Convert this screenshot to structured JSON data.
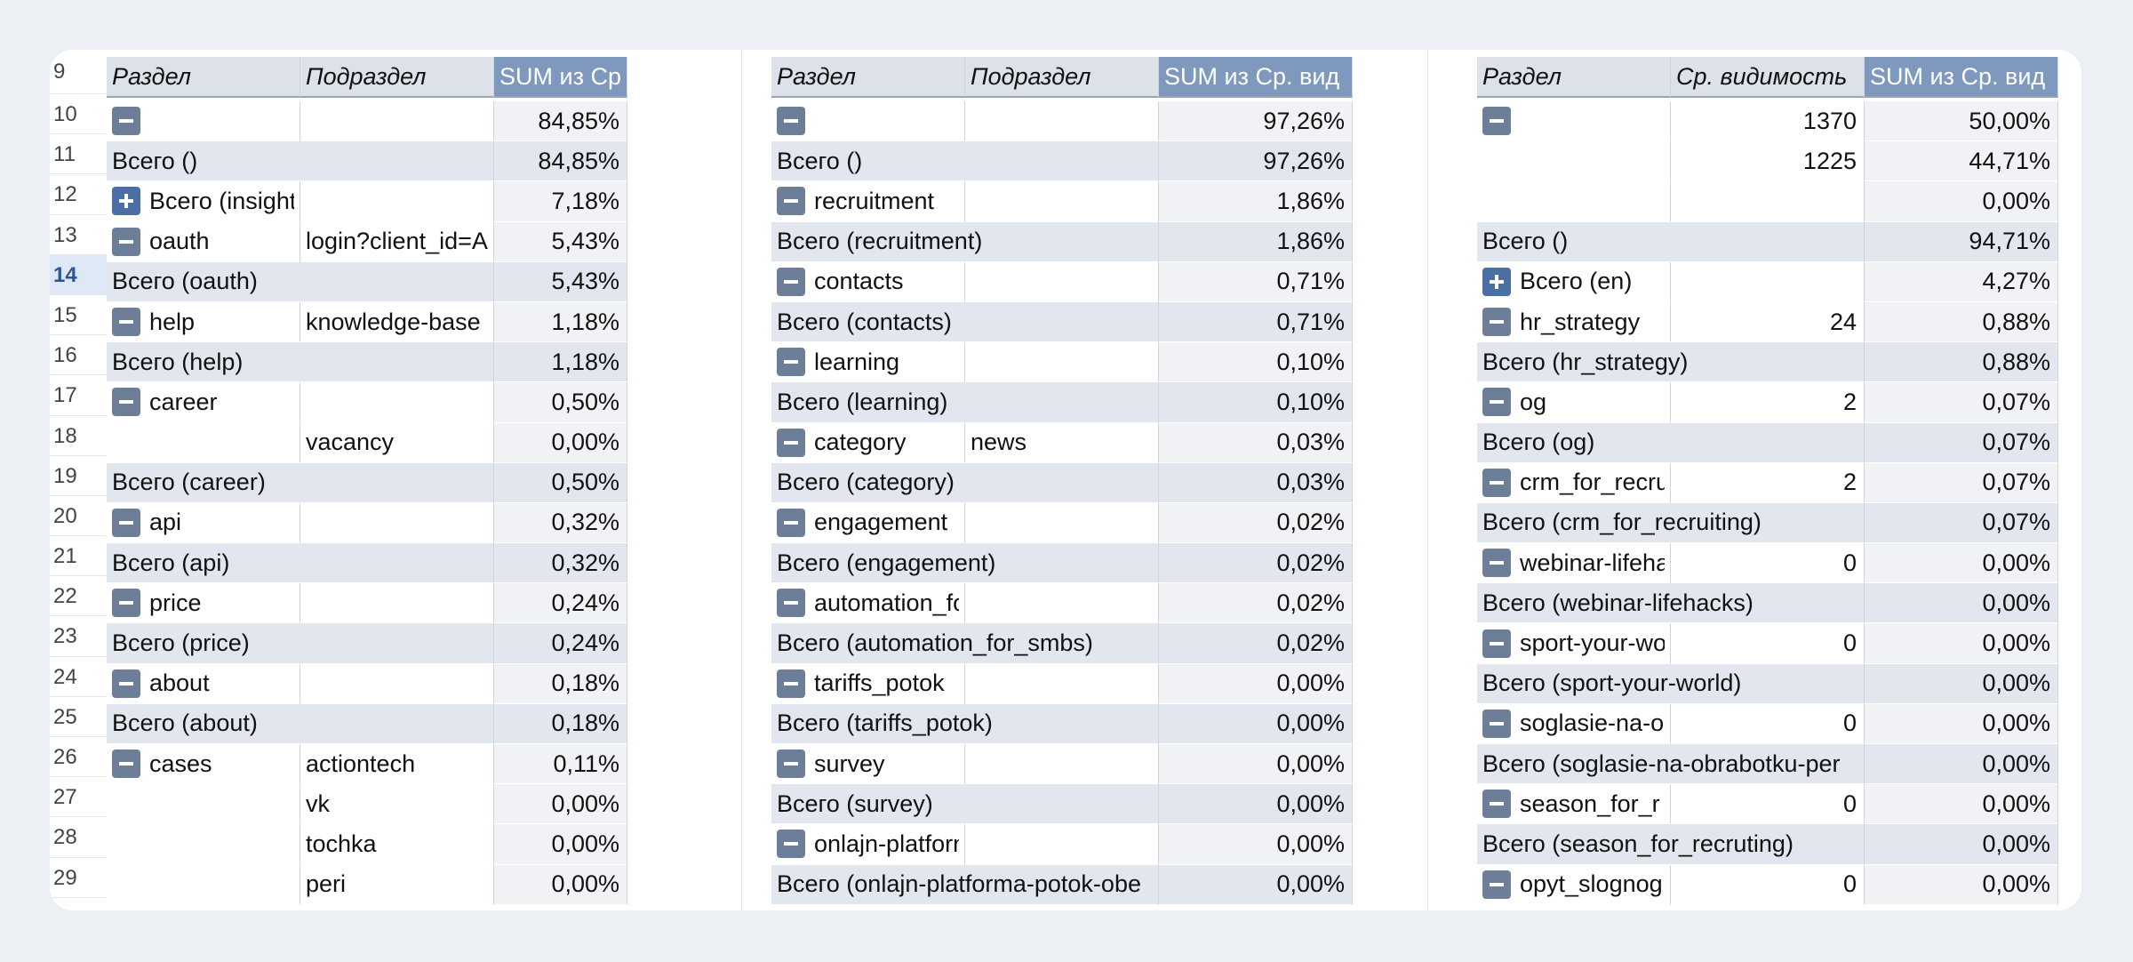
{
  "row_numbers": [
    "9",
    "10",
    "11",
    "12",
    "13",
    "14",
    "15",
    "16",
    "17",
    "18",
    "19",
    "20",
    "21",
    "22",
    "23",
    "24",
    "25",
    "26",
    "27",
    "28",
    "29"
  ],
  "selected_row": "14",
  "pivot1": {
    "headers": [
      "Раздел",
      "Подраздел",
      "SUM из Ср"
    ],
    "rows": [
      {
        "type": "toggle-minus",
        "a": "",
        "b": "",
        "v": "84,85%"
      },
      {
        "type": "total",
        "a": "Всего ()",
        "b": "",
        "v": "84,85%"
      },
      {
        "type": "toggle-plus",
        "a": "Всего (insight)",
        "b": "",
        "v": "7,18%"
      },
      {
        "type": "toggle-minus",
        "a": "oauth",
        "b": "login?client_id=A",
        "v": "5,43%"
      },
      {
        "type": "total",
        "a": "Всего (oauth)",
        "b": "",
        "v": "5,43%"
      },
      {
        "type": "toggle-minus",
        "a": "help",
        "b": "knowledge-base",
        "v": "1,18%"
      },
      {
        "type": "total",
        "a": "Всего (help)",
        "b": "",
        "v": "1,18%"
      },
      {
        "type": "toggle-minus",
        "a": "career",
        "b": "",
        "v": "0,50%"
      },
      {
        "type": "plain",
        "a": "",
        "b": "vacancy",
        "v": "0,00%"
      },
      {
        "type": "total",
        "a": "Всего (career)",
        "b": "",
        "v": "0,50%"
      },
      {
        "type": "toggle-minus",
        "a": "api",
        "b": "",
        "v": "0,32%"
      },
      {
        "type": "total",
        "a": "Всего (api)",
        "b": "",
        "v": "0,32%"
      },
      {
        "type": "toggle-minus",
        "a": "price",
        "b": "",
        "v": "0,24%"
      },
      {
        "type": "total",
        "a": "Всего (price)",
        "b": "",
        "v": "0,24%"
      },
      {
        "type": "toggle-minus",
        "a": "about",
        "b": "",
        "v": "0,18%"
      },
      {
        "type": "total",
        "a": "Всего (about)",
        "b": "",
        "v": "0,18%"
      },
      {
        "type": "toggle-minus",
        "a": "cases",
        "b": "actiontech",
        "v": "0,11%"
      },
      {
        "type": "plain",
        "a": "",
        "b": "vk",
        "v": "0,00%"
      },
      {
        "type": "plain",
        "a": "",
        "b": "tochka",
        "v": "0,00%"
      },
      {
        "type": "plain",
        "a": "",
        "b": "peri",
        "v": "0,00%"
      }
    ]
  },
  "pivot2": {
    "headers": [
      "Раздел",
      "Подраздел",
      "SUM из Ср. вид"
    ],
    "rows": [
      {
        "type": "toggle-minus",
        "a": "",
        "b": "",
        "v": "97,26%"
      },
      {
        "type": "total",
        "a": "Всего ()",
        "b": "",
        "v": "97,26%"
      },
      {
        "type": "toggle-minus",
        "a": "recruitment",
        "b": "",
        "v": "1,86%"
      },
      {
        "type": "total",
        "a": "Всего (recruitment)",
        "b": "",
        "v": "1,86%"
      },
      {
        "type": "toggle-minus",
        "a": "contacts",
        "b": "",
        "v": "0,71%"
      },
      {
        "type": "total",
        "a": "Всего (contacts)",
        "b": "",
        "v": "0,71%"
      },
      {
        "type": "toggle-minus",
        "a": "learning",
        "b": "",
        "v": "0,10%"
      },
      {
        "type": "total",
        "a": "Всего (learning)",
        "b": "",
        "v": "0,10%"
      },
      {
        "type": "toggle-minus",
        "a": "category",
        "b": "news",
        "v": "0,03%"
      },
      {
        "type": "total",
        "a": "Всего (category)",
        "b": "",
        "v": "0,03%"
      },
      {
        "type": "toggle-minus",
        "a": "engagement",
        "b": "",
        "v": "0,02%"
      },
      {
        "type": "total",
        "a": "Всего (engagement)",
        "b": "",
        "v": "0,02%"
      },
      {
        "type": "toggle-minus",
        "a": "automation_for_smbs",
        "b": "",
        "v": "0,02%"
      },
      {
        "type": "total",
        "a": "Всего (automation_for_smbs)",
        "b": "",
        "v": "0,02%"
      },
      {
        "type": "toggle-minus",
        "a": "tariffs_potok",
        "b": "",
        "v": "0,00%"
      },
      {
        "type": "total",
        "a": "Всего (tariffs_potok)",
        "b": "",
        "v": "0,00%"
      },
      {
        "type": "toggle-minus",
        "a": "survey",
        "b": "",
        "v": "0,00%"
      },
      {
        "type": "total",
        "a": "Всего (survey)",
        "b": "",
        "v": "0,00%"
      },
      {
        "type": "toggle-minus",
        "a": "onlajn-platforma-potok-obespe",
        "b": "",
        "v": "0,00%"
      },
      {
        "type": "total",
        "a": "Всего (onlajn-platforma-potok-obe",
        "b": "",
        "v": "0,00%"
      }
    ]
  },
  "pivot3": {
    "headers": [
      "Раздел",
      "Ср. видимость",
      "SUM из Ср. вид"
    ],
    "rows": [
      {
        "type": "toggle-minus",
        "a": "",
        "b": "1370",
        "v": "50,00%"
      },
      {
        "type": "plain",
        "a": "",
        "b": "1225",
        "v": "44,71%"
      },
      {
        "type": "plain",
        "a": "",
        "b": "",
        "v": "0,00%"
      },
      {
        "type": "total",
        "a": "Всего ()",
        "b": "",
        "v": "94,71%"
      },
      {
        "type": "toggle-plus",
        "a": "Всего (en)",
        "b": "",
        "v": "4,27%"
      },
      {
        "type": "toggle-minus",
        "a": "hr_strategy",
        "b": "24",
        "v": "0,88%"
      },
      {
        "type": "total",
        "a": "Всего (hr_strategy)",
        "b": "",
        "v": "0,88%"
      },
      {
        "type": "toggle-minus",
        "a": "og",
        "b": "2",
        "v": "0,07%"
      },
      {
        "type": "total",
        "a": "Всего (og)",
        "b": "",
        "v": "0,07%"
      },
      {
        "type": "toggle-minus",
        "a": "crm_for_recru",
        "b": "2",
        "v": "0,07%"
      },
      {
        "type": "total",
        "a": "Всего (crm_for_recruiting)",
        "b": "",
        "v": "0,07%"
      },
      {
        "type": "toggle-minus",
        "a": "webinar-lifeha",
        "b": "0",
        "v": "0,00%"
      },
      {
        "type": "total",
        "a": "Всего (webinar-lifehacks)",
        "b": "",
        "v": "0,00%"
      },
      {
        "type": "toggle-minus",
        "a": "sport-your-wo",
        "b": "0",
        "v": "0,00%"
      },
      {
        "type": "total",
        "a": "Всего (sport-your-world)",
        "b": "",
        "v": "0,00%"
      },
      {
        "type": "toggle-minus",
        "a": "soglasie-na-o",
        "b": "0",
        "v": "0,00%"
      },
      {
        "type": "total",
        "a": "Всего (soglasie-na-obrabotku-per",
        "b": "",
        "v": "0,00%"
      },
      {
        "type": "toggle-minus",
        "a": "season_for_r",
        "b": "0",
        "v": "0,00%"
      },
      {
        "type": "total",
        "a": "Всего (season_for_recruting)",
        "b": "",
        "v": "0,00%"
      },
      {
        "type": "toggle-minus",
        "a": "opyt_slognog",
        "b": "0",
        "v": "0,00%"
      }
    ]
  }
}
